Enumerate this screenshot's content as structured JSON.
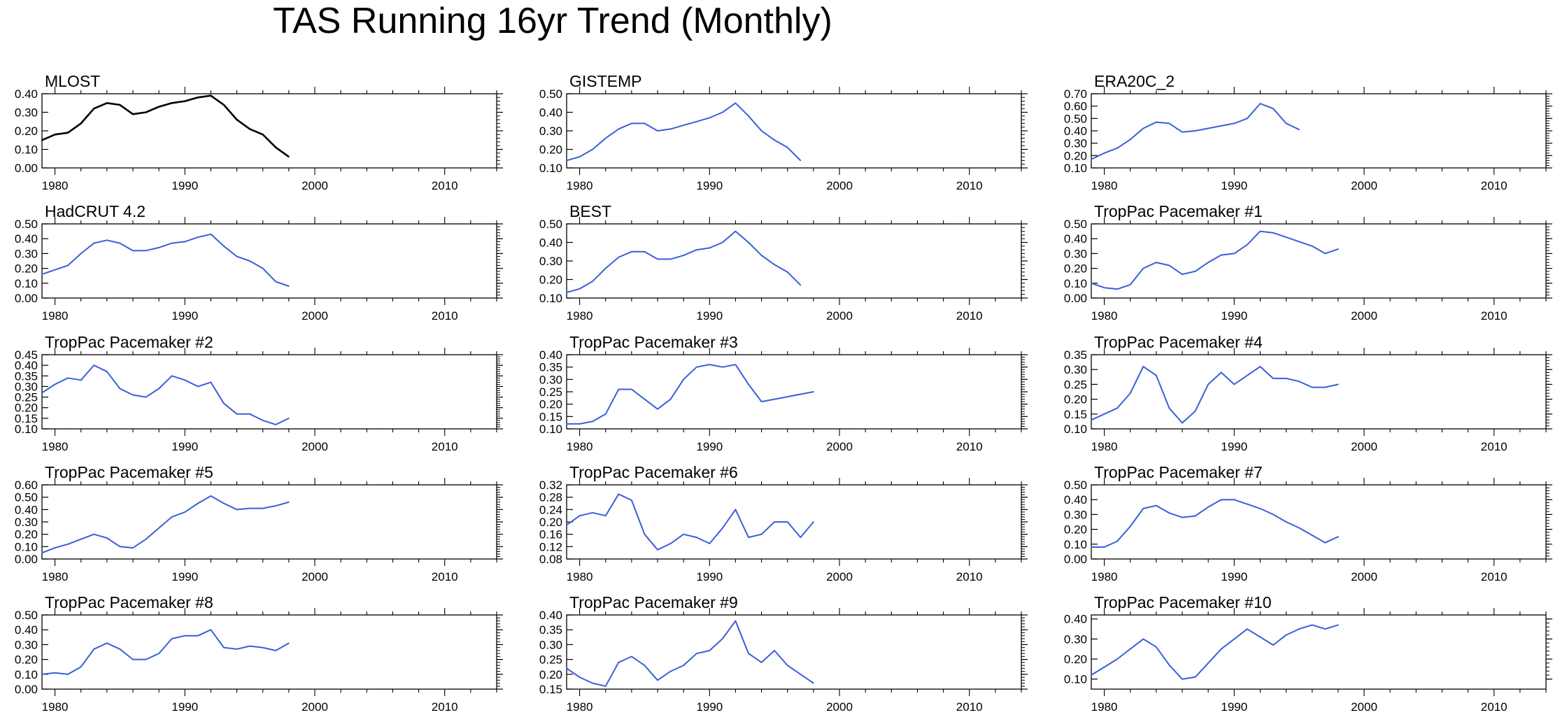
{
  "figure": {
    "title": "TAS Running 16yr Trend (Monthly)",
    "x_ticks": [
      "1980",
      "1990",
      "2000",
      "2010"
    ],
    "obs_color": "#000000",
    "model_color": "#3a5fd9"
  },
  "chart_data": [
    {
      "type": "line",
      "title": "MLOST",
      "xlim": [
        1979,
        2014
      ],
      "ylim": [
        0,
        0.4
      ],
      "yticks": [
        "0.00",
        "0.10",
        "0.20",
        "0.30",
        "0.40"
      ],
      "color": "#000000",
      "x": [
        1979,
        1980,
        1981,
        1982,
        1983,
        1984,
        1985,
        1986,
        1987,
        1988,
        1989,
        1990,
        1991,
        1992,
        1993,
        1994,
        1995,
        1996,
        1997,
        1998
      ],
      "values": [
        0.15,
        0.18,
        0.19,
        0.24,
        0.32,
        0.35,
        0.34,
        0.29,
        0.3,
        0.33,
        0.35,
        0.36,
        0.38,
        0.39,
        0.34,
        0.26,
        0.21,
        0.18,
        0.11,
        0.06
      ]
    },
    {
      "type": "line",
      "title": "GISTEMP",
      "xlim": [
        1979,
        2014
      ],
      "ylim": [
        0.1,
        0.5
      ],
      "yticks": [
        "0.10",
        "0.20",
        "0.30",
        "0.40",
        "0.50"
      ],
      "color": "#3a5fd9",
      "x": [
        1979,
        1980,
        1981,
        1982,
        1983,
        1984,
        1985,
        1986,
        1987,
        1988,
        1989,
        1990,
        1991,
        1992,
        1993,
        1994,
        1995,
        1996,
        1997
      ],
      "values": [
        0.14,
        0.16,
        0.2,
        0.26,
        0.31,
        0.34,
        0.34,
        0.3,
        0.31,
        0.33,
        0.35,
        0.37,
        0.4,
        0.45,
        0.38,
        0.3,
        0.25,
        0.21,
        0.14
      ]
    },
    {
      "type": "line",
      "title": "ERA20C_2",
      "xlim": [
        1979,
        2014
      ],
      "ylim": [
        0.1,
        0.7
      ],
      "yticks": [
        "0.10",
        "0.20",
        "0.30",
        "0.40",
        "0.50",
        "0.60",
        "0.70"
      ],
      "color": "#3a5fd9",
      "x": [
        1979,
        1980,
        1981,
        1982,
        1983,
        1984,
        1985,
        1986,
        1987,
        1988,
        1989,
        1990,
        1991,
        1992,
        1993,
        1994,
        1995
      ],
      "values": [
        0.17,
        0.22,
        0.26,
        0.33,
        0.42,
        0.47,
        0.46,
        0.39,
        0.4,
        0.42,
        0.44,
        0.46,
        0.5,
        0.62,
        0.58,
        0.46,
        0.41
      ]
    },
    {
      "type": "line",
      "title": "HadCRUT 4.2",
      "xlim": [
        1979,
        2014
      ],
      "ylim": [
        0,
        0.5
      ],
      "yticks": [
        "0.00",
        "0.10",
        "0.20",
        "0.30",
        "0.40",
        "0.50"
      ],
      "color": "#3a5fd9",
      "x": [
        1979,
        1980,
        1981,
        1982,
        1983,
        1984,
        1985,
        1986,
        1987,
        1988,
        1989,
        1990,
        1991,
        1992,
        1993,
        1994,
        1995,
        1996,
        1997,
        1998
      ],
      "values": [
        0.16,
        0.19,
        0.22,
        0.3,
        0.37,
        0.39,
        0.37,
        0.32,
        0.32,
        0.34,
        0.37,
        0.38,
        0.41,
        0.43,
        0.35,
        0.28,
        0.25,
        0.2,
        0.11,
        0.08
      ]
    },
    {
      "type": "line",
      "title": "BEST",
      "xlim": [
        1979,
        2014
      ],
      "ylim": [
        0.1,
        0.5
      ],
      "yticks": [
        "0.10",
        "0.20",
        "0.30",
        "0.40",
        "0.50"
      ],
      "color": "#3a5fd9",
      "x": [
        1979,
        1980,
        1981,
        1982,
        1983,
        1984,
        1985,
        1986,
        1987,
        1988,
        1989,
        1990,
        1991,
        1992,
        1993,
        1994,
        1995,
        1996,
        1997
      ],
      "values": [
        0.13,
        0.15,
        0.19,
        0.26,
        0.32,
        0.35,
        0.35,
        0.31,
        0.31,
        0.33,
        0.36,
        0.37,
        0.4,
        0.46,
        0.4,
        0.33,
        0.28,
        0.24,
        0.17
      ]
    },
    {
      "type": "line",
      "title": "TropPac Pacemaker #1",
      "xlim": [
        1979,
        2014
      ],
      "ylim": [
        0,
        0.5
      ],
      "yticks": [
        "0.00",
        "0.10",
        "0.20",
        "0.30",
        "0.40",
        "0.50"
      ],
      "color": "#3a5fd9",
      "x": [
        1979,
        1980,
        1981,
        1982,
        1983,
        1984,
        1985,
        1986,
        1987,
        1988,
        1989,
        1990,
        1991,
        1992,
        1993,
        1994,
        1995,
        1996,
        1997,
        1998
      ],
      "values": [
        0.1,
        0.07,
        0.06,
        0.09,
        0.2,
        0.24,
        0.22,
        0.16,
        0.18,
        0.24,
        0.29,
        0.3,
        0.36,
        0.45,
        0.44,
        0.41,
        0.38,
        0.35,
        0.3,
        0.33
      ]
    },
    {
      "type": "line",
      "title": "TropPac Pacemaker #2",
      "xlim": [
        1979,
        2014
      ],
      "ylim": [
        0.1,
        0.45
      ],
      "yticks": [
        "0.10",
        "0.15",
        "0.20",
        "0.25",
        "0.30",
        "0.35",
        "0.40",
        "0.45"
      ],
      "color": "#3a5fd9",
      "x": [
        1979,
        1980,
        1981,
        1982,
        1983,
        1984,
        1985,
        1986,
        1987,
        1988,
        1989,
        1990,
        1991,
        1992,
        1993,
        1994,
        1995,
        1996,
        1997,
        1998
      ],
      "values": [
        0.27,
        0.31,
        0.34,
        0.33,
        0.4,
        0.37,
        0.29,
        0.26,
        0.25,
        0.29,
        0.35,
        0.33,
        0.3,
        0.32,
        0.22,
        0.17,
        0.17,
        0.14,
        0.12,
        0.15
      ]
    },
    {
      "type": "line",
      "title": "TropPac Pacemaker #3",
      "xlim": [
        1979,
        2014
      ],
      "ylim": [
        0.1,
        0.4
      ],
      "yticks": [
        "0.10",
        "0.15",
        "0.20",
        "0.25",
        "0.30",
        "0.35",
        "0.40"
      ],
      "color": "#3a5fd9",
      "x": [
        1979,
        1980,
        1981,
        1982,
        1983,
        1984,
        1985,
        1986,
        1987,
        1988,
        1989,
        1990,
        1991,
        1992,
        1993,
        1994,
        1995,
        1996,
        1997,
        1998
      ],
      "values": [
        0.12,
        0.12,
        0.13,
        0.16,
        0.26,
        0.26,
        0.22,
        0.18,
        0.22,
        0.3,
        0.35,
        0.36,
        0.35,
        0.36,
        0.28,
        0.21,
        0.22,
        0.23,
        0.24,
        0.25
      ]
    },
    {
      "type": "line",
      "title": "TropPac Pacemaker #4",
      "xlim": [
        1979,
        2014
      ],
      "ylim": [
        0.1,
        0.35
      ],
      "yticks": [
        "0.10",
        "0.15",
        "0.20",
        "0.25",
        "0.30",
        "0.35"
      ],
      "color": "#3a5fd9",
      "x": [
        1979,
        1980,
        1981,
        1982,
        1983,
        1984,
        1985,
        1986,
        1987,
        1988,
        1989,
        1990,
        1991,
        1992,
        1993,
        1994,
        1995,
        1996,
        1997,
        1998
      ],
      "values": [
        0.13,
        0.15,
        0.17,
        0.22,
        0.31,
        0.28,
        0.17,
        0.12,
        0.16,
        0.25,
        0.29,
        0.25,
        0.28,
        0.31,
        0.27,
        0.27,
        0.26,
        0.24,
        0.24,
        0.25
      ]
    },
    {
      "type": "line",
      "title": "TropPac Pacemaker #5",
      "xlim": [
        1979,
        2014
      ],
      "ylim": [
        0,
        0.6
      ],
      "yticks": [
        "0.00",
        "0.10",
        "0.20",
        "0.30",
        "0.40",
        "0.50",
        "0.60"
      ],
      "color": "#3a5fd9",
      "x": [
        1979,
        1980,
        1981,
        1982,
        1983,
        1984,
        1985,
        1986,
        1987,
        1988,
        1989,
        1990,
        1991,
        1992,
        1993,
        1994,
        1995,
        1996,
        1997,
        1998
      ],
      "values": [
        0.05,
        0.09,
        0.12,
        0.16,
        0.2,
        0.17,
        0.1,
        0.09,
        0.16,
        0.25,
        0.34,
        0.38,
        0.45,
        0.51,
        0.45,
        0.4,
        0.41,
        0.41,
        0.43,
        0.46
      ]
    },
    {
      "type": "line",
      "title": "TropPac Pacemaker #6",
      "xlim": [
        1979,
        2014
      ],
      "ylim": [
        0.08,
        0.32
      ],
      "yticks": [
        "0.08",
        "0.12",
        "0.16",
        "0.20",
        "0.24",
        "0.28",
        "0.32"
      ],
      "color": "#3a5fd9",
      "x": [
        1979,
        1980,
        1981,
        1982,
        1983,
        1984,
        1985,
        1986,
        1987,
        1988,
        1989,
        1990,
        1991,
        1992,
        1993,
        1994,
        1995,
        1996,
        1997,
        1998
      ],
      "values": [
        0.19,
        0.22,
        0.23,
        0.22,
        0.29,
        0.27,
        0.16,
        0.11,
        0.13,
        0.16,
        0.15,
        0.13,
        0.18,
        0.24,
        0.15,
        0.16,
        0.2,
        0.2,
        0.15,
        0.2
      ]
    },
    {
      "type": "line",
      "title": "TropPac Pacemaker #7",
      "xlim": [
        1979,
        2014
      ],
      "ylim": [
        0,
        0.5
      ],
      "yticks": [
        "0.00",
        "0.10",
        "0.20",
        "0.30",
        "0.40",
        "0.50"
      ],
      "color": "#3a5fd9",
      "x": [
        1979,
        1980,
        1981,
        1982,
        1983,
        1984,
        1985,
        1986,
        1987,
        1988,
        1989,
        1990,
        1991,
        1992,
        1993,
        1994,
        1995,
        1996,
        1997,
        1998
      ],
      "values": [
        0.08,
        0.08,
        0.12,
        0.22,
        0.34,
        0.36,
        0.31,
        0.28,
        0.29,
        0.35,
        0.4,
        0.4,
        0.37,
        0.34,
        0.3,
        0.25,
        0.21,
        0.16,
        0.11,
        0.15
      ]
    },
    {
      "type": "line",
      "title": "TropPac Pacemaker #8",
      "xlim": [
        1979,
        2014
      ],
      "ylim": [
        0,
        0.5
      ],
      "yticks": [
        "0.00",
        "0.10",
        "0.20",
        "0.30",
        "0.40",
        "0.50"
      ],
      "color": "#3a5fd9",
      "x": [
        1979,
        1980,
        1981,
        1982,
        1983,
        1984,
        1985,
        1986,
        1987,
        1988,
        1989,
        1990,
        1991,
        1992,
        1993,
        1994,
        1995,
        1996,
        1997,
        1998
      ],
      "values": [
        0.1,
        0.11,
        0.1,
        0.15,
        0.27,
        0.31,
        0.27,
        0.2,
        0.2,
        0.24,
        0.34,
        0.36,
        0.36,
        0.4,
        0.28,
        0.27,
        0.29,
        0.28,
        0.26,
        0.31
      ]
    },
    {
      "type": "line",
      "title": "TropPac Pacemaker #9",
      "xlim": [
        1979,
        2014
      ],
      "ylim": [
        0.15,
        0.4
      ],
      "yticks": [
        "0.15",
        "0.20",
        "0.25",
        "0.30",
        "0.35",
        "0.40"
      ],
      "color": "#3a5fd9",
      "x": [
        1979,
        1980,
        1981,
        1982,
        1983,
        1984,
        1985,
        1986,
        1987,
        1988,
        1989,
        1990,
        1991,
        1992,
        1993,
        1994,
        1995,
        1996,
        1997,
        1998
      ],
      "values": [
        0.22,
        0.19,
        0.17,
        0.16,
        0.24,
        0.26,
        0.23,
        0.18,
        0.21,
        0.23,
        0.27,
        0.28,
        0.32,
        0.38,
        0.27,
        0.24,
        0.28,
        0.23,
        0.2,
        0.17
      ]
    },
    {
      "type": "line",
      "title": "TropPac Pacemaker #10",
      "xlim": [
        1979,
        2014
      ],
      "ylim": [
        0.05,
        0.42
      ],
      "yticks": [
        "0.10",
        "0.20",
        "0.30",
        "0.40"
      ],
      "color": "#3a5fd9",
      "x": [
        1979,
        1980,
        1981,
        1982,
        1983,
        1984,
        1985,
        1986,
        1987,
        1988,
        1989,
        1990,
        1991,
        1992,
        1993,
        1994,
        1995,
        1996,
        1997,
        1998
      ],
      "values": [
        0.12,
        0.16,
        0.2,
        0.25,
        0.3,
        0.26,
        0.17,
        0.1,
        0.11,
        0.18,
        0.25,
        0.3,
        0.35,
        0.31,
        0.27,
        0.32,
        0.35,
        0.37,
        0.35,
        0.37
      ]
    }
  ]
}
